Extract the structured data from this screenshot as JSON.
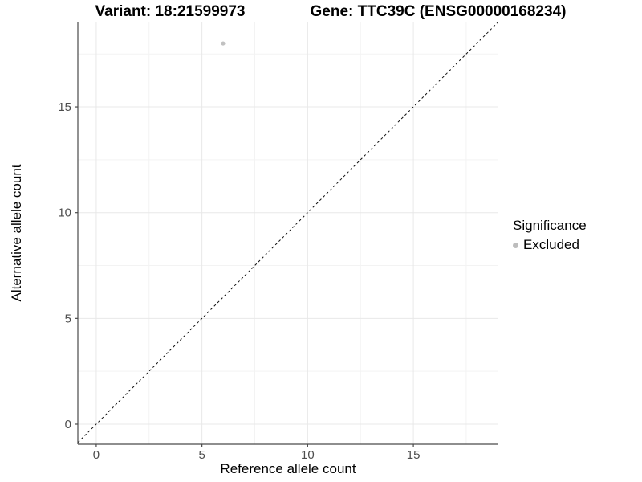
{
  "chart_data": {
    "type": "scatter",
    "title_left": "Variant: 18:21599973",
    "title_right": "Gene: TTC39C (ENSG00000168234)",
    "xlabel": "Reference allele count",
    "ylabel": "Alternative allele count",
    "xlim": [
      -0.87,
      19.02
    ],
    "ylim": [
      -0.95,
      18.99
    ],
    "x_ticks": [
      0,
      5,
      10,
      15
    ],
    "y_ticks": [
      0,
      5,
      10,
      15
    ],
    "x_minor_ticks": [
      2.5,
      7.5,
      12.5,
      17.5
    ],
    "y_minor_ticks": [
      2.5,
      7.5,
      12.5,
      17.5
    ],
    "grid": true,
    "points": [
      {
        "x": 6,
        "y": 18,
        "series": "Excluded"
      }
    ],
    "reference_line": {
      "slope": 1,
      "intercept": 0,
      "linetype": "dashed"
    },
    "legend": {
      "title": "Significance",
      "position": "right",
      "entries": [
        {
          "label": "Excluded",
          "color": "#bdbdbd"
        }
      ]
    },
    "colors": {
      "point": "#c1c1c1",
      "legend_key": "#b5b5b5",
      "grid_major": "#e8e8e8",
      "grid_minor": "#f3f3f3",
      "axis_line": "#4a4a4a",
      "tick_mark": "#4a4a4a",
      "tick_text": "#4d4d4d",
      "reference_line": "#111111",
      "background": "#ffffff"
    }
  }
}
